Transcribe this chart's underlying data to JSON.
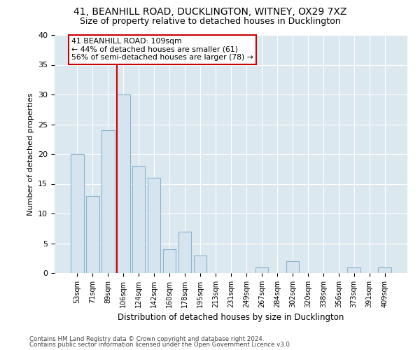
{
  "title1": "41, BEANHILL ROAD, DUCKLINGTON, WITNEY, OX29 7XZ",
  "title2": "Size of property relative to detached houses in Ducklington",
  "xlabel": "Distribution of detached houses by size in Ducklington",
  "ylabel": "Number of detached properties",
  "categories": [
    "53sqm",
    "71sqm",
    "89sqm",
    "106sqm",
    "124sqm",
    "142sqm",
    "160sqm",
    "178sqm",
    "195sqm",
    "213sqm",
    "231sqm",
    "249sqm",
    "267sqm",
    "284sqm",
    "302sqm",
    "320sqm",
    "338sqm",
    "356sqm",
    "373sqm",
    "391sqm",
    "409sqm"
  ],
  "values": [
    20,
    13,
    24,
    30,
    18,
    16,
    4,
    7,
    3,
    0,
    0,
    0,
    1,
    0,
    2,
    0,
    0,
    0,
    1,
    0,
    1
  ],
  "bar_color": "#d6e4f0",
  "bar_edge_color": "#8ab4cc",
  "vline_x_index": 3,
  "vline_color": "#cc0000",
  "annotation_text": "41 BEANHILL ROAD: 109sqm\n← 44% of detached houses are smaller (61)\n56% of semi-detached houses are larger (78) →",
  "annotation_box_color": "#ffffff",
  "annotation_box_edge": "#cc0000",
  "ylim": [
    0,
    40
  ],
  "yticks": [
    0,
    5,
    10,
    15,
    20,
    25,
    30,
    35,
    40
  ],
  "background_color": "#ffffff",
  "plot_bg_color": "#dce8f0",
  "grid_color": "#ffffff",
  "footer1": "Contains HM Land Registry data © Crown copyright and database right 2024.",
  "footer2": "Contains public sector information licensed under the Open Government Licence v3.0."
}
